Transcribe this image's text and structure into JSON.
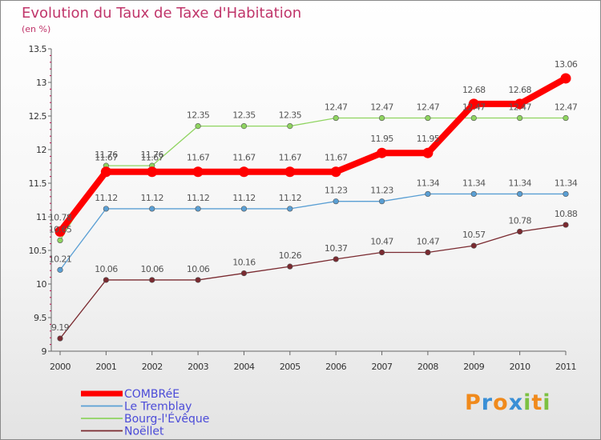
{
  "header": {
    "title": "Evolution du Taux de Taxe d'Habitation",
    "subtitle": "(en %)"
  },
  "logo": {
    "letters": [
      "P",
      "r",
      "o",
      "x",
      "i",
      "t",
      "i"
    ],
    "colors": [
      "#f08a1c",
      "#3a8fd6",
      "#f08a1c",
      "#3a8fd6",
      "#7cc142",
      "#f08a1c",
      "#7cc142"
    ]
  },
  "chart_data": {
    "type": "line",
    "title": "Evolution du Taux de Taxe d'Habitation",
    "ylabel": "(en %)",
    "x": [
      "2000",
      "2001",
      "2002",
      "2003",
      "2004",
      "2005",
      "2006",
      "2007",
      "2008",
      "2009",
      "2010",
      "2011"
    ],
    "ylim": [
      9,
      13.5
    ],
    "yticks": [
      "9",
      "9.5",
      "10",
      "10.5",
      "11",
      "11.5",
      "12",
      "12.5",
      "13",
      "13.5"
    ],
    "grid": false,
    "legend_position": "bottom-left",
    "series": [
      {
        "name": "Noëllet",
        "color": "#7a2a30",
        "values": [
          9.19,
          10.06,
          10.06,
          10.06,
          10.16,
          10.26,
          10.37,
          10.47,
          10.47,
          10.57,
          10.78,
          10.88
        ],
        "labels": [
          "9.19",
          "10.06",
          "10.06",
          "10.06",
          "10.16",
          "10.26",
          "10.37",
          "10.47",
          "10.47",
          "10.57",
          "10.78",
          "10.88"
        ]
      },
      {
        "name": "Le Tremblay",
        "color": "#5a9fd4",
        "values": [
          10.21,
          11.12,
          11.12,
          11.12,
          11.12,
          11.12,
          11.23,
          11.23,
          11.34,
          11.34,
          11.34,
          11.34
        ],
        "labels": [
          "10.21",
          "11.12",
          "11.12",
          "11.12",
          "11.12",
          "11.12",
          "11.23",
          "11.23",
          "11.34",
          "11.34",
          "11.34",
          "11.34"
        ]
      },
      {
        "name": "Bourg-l'Évêque",
        "color": "#8fd460",
        "values": [
          10.65,
          11.76,
          11.76,
          12.35,
          12.35,
          12.35,
          12.47,
          12.47,
          12.47,
          12.47,
          12.47,
          12.47
        ],
        "labels": [
          "10.65",
          "11.76",
          "11.76",
          "12.35",
          "12.35",
          "12.35",
          "12.47",
          "12.47",
          "12.47",
          "12.47",
          "12.47",
          "12.47"
        ]
      },
      {
        "name": "COMBRéE",
        "color": "#ff0000",
        "values": [
          10.78,
          11.67,
          11.67,
          11.67,
          11.67,
          11.67,
          11.67,
          11.95,
          11.95,
          12.68,
          12.68,
          13.06
        ],
        "labels": [
          "10.78",
          "11.67",
          "11.67",
          "11.67",
          "11.67",
          "11.67",
          "11.67",
          "11.95",
          "11.95",
          "12.68",
          "12.68",
          "13.06"
        ]
      }
    ],
    "legend_order": [
      "COMBRéE",
      "Le Tremblay",
      "Bourg-l'Évêque",
      "Noëllet"
    ]
  }
}
